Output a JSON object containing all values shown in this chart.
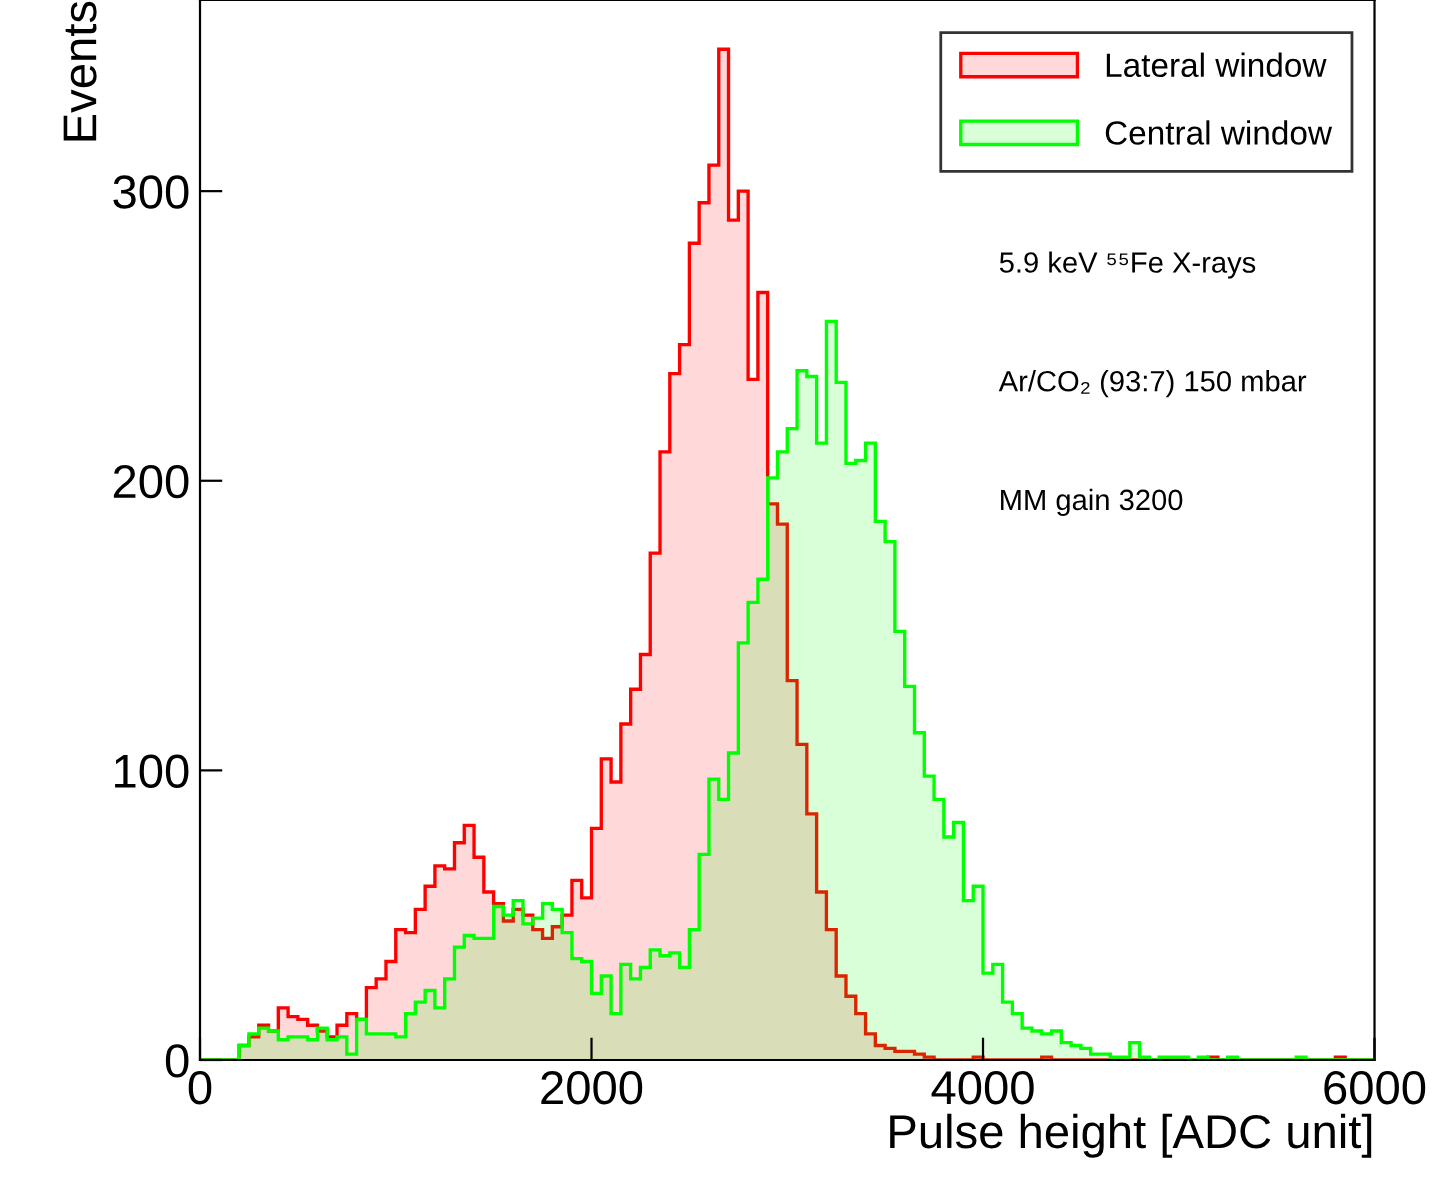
{
  "chart_data": {
    "type": "histogram",
    "xlabel": "Pulse height [ADC unit]",
    "ylabel": "Events",
    "bins": [
      0,
      50,
      100,
      150,
      200,
      250,
      300,
      350,
      400,
      450,
      500,
      550,
      600,
      650,
      700,
      750,
      800,
      850,
      900,
      950,
      1000,
      1050,
      1100,
      1150,
      1200,
      1250,
      1300,
      1350,
      1400,
      1450,
      1500,
      1550,
      1600,
      1650,
      1700,
      1750,
      1800,
      1850,
      1900,
      1950,
      2000,
      2050,
      2100,
      2150,
      2200,
      2250,
      2300,
      2350,
      2400,
      2450,
      2500,
      2550,
      2600,
      2650,
      2700,
      2750,
      2800,
      2850,
      2900,
      2950,
      3000,
      3050,
      3100,
      3150,
      3200,
      3250,
      3300,
      3350,
      3400,
      3450,
      3500,
      3550,
      3600,
      3650,
      3700,
      3750,
      3800,
      3850,
      3900,
      3950,
      4000,
      4050,
      4100,
      4150,
      4200,
      4250,
      4300,
      4350,
      4400,
      4450,
      4500,
      4550,
      4600,
      4650,
      4700,
      4750,
      4800,
      4850,
      4900,
      4950,
      5000,
      5050,
      5100,
      5150,
      5200,
      5250,
      5300,
      5350,
      5400,
      5450,
      5500,
      5550,
      5600,
      5650,
      5700,
      5750,
      5800,
      5850,
      5900,
      5950,
      6000
    ],
    "series": [
      {
        "name": "Lateral window",
        "color": "#ff0000",
        "values": [
          0,
          0,
          0,
          0,
          5,
          8,
          12,
          10,
          18,
          15,
          14,
          12,
          10,
          8,
          12,
          16,
          14,
          25,
          28,
          34,
          45,
          44,
          52,
          60,
          67,
          66,
          75,
          81,
          70,
          58,
          54,
          48,
          52,
          50,
          45,
          42,
          46,
          50,
          62,
          56,
          80,
          104,
          96,
          116,
          128,
          140,
          175,
          210,
          237,
          247,
          282,
          296,
          309,
          349,
          290,
          300,
          235,
          265,
          192,
          185,
          131,
          109,
          85,
          58,
          45,
          29,
          22,
          16,
          9,
          5,
          4,
          3,
          3,
          2,
          1,
          0,
          0,
          0,
          0,
          1,
          0,
          0,
          0,
          0,
          0,
          0,
          1,
          0,
          0,
          0,
          0,
          0,
          0,
          0,
          0,
          0,
          0,
          0,
          0,
          0,
          0,
          0,
          0,
          1,
          0,
          0,
          0,
          0,
          0,
          0,
          0,
          0,
          0,
          0,
          0,
          0,
          1,
          0,
          0,
          0
        ]
      },
      {
        "name": "Central window",
        "color": "#00ff00",
        "values": [
          0,
          0,
          0,
          0,
          5,
          9,
          11,
          10,
          7,
          8,
          8,
          7,
          11,
          7,
          8,
          2,
          14,
          9,
          9,
          9,
          8,
          16,
          20,
          24,
          18,
          28,
          39,
          43,
          42,
          42,
          53,
          50,
          55,
          47,
          49,
          54,
          52,
          44,
          35,
          34,
          23,
          29,
          16,
          33,
          28,
          32,
          38,
          36,
          37,
          32,
          45,
          71,
          97,
          90,
          106,
          144,
          158,
          166,
          201,
          210,
          218,
          238,
          236,
          213,
          255,
          234,
          206,
          207,
          213,
          186,
          179,
          148,
          129,
          113,
          98,
          90,
          77,
          82,
          55,
          60,
          30,
          33,
          20,
          16,
          11,
          10,
          9,
          10,
          6,
          5,
          4,
          2,
          2,
          1,
          1,
          6,
          1,
          0,
          1,
          1,
          1,
          0,
          1,
          0,
          0,
          1,
          0,
          0,
          0,
          0,
          0,
          0,
          1,
          0,
          0,
          0,
          0,
          0,
          0,
          0
        ]
      }
    ],
    "xlim": [
      0,
      6000
    ],
    "xticks": [
      0,
      2000,
      4000,
      6000
    ],
    "ylim": [
      0,
      366
    ],
    "yticks": [
      0,
      100,
      200,
      300
    ],
    "grid": false,
    "legend": "top right",
    "annotations": [
      "5.9 keV ⁵⁵Fe X-rays",
      "Ar/CO₂ (93:7) 150 mbar",
      "MM gain 3200"
    ]
  }
}
